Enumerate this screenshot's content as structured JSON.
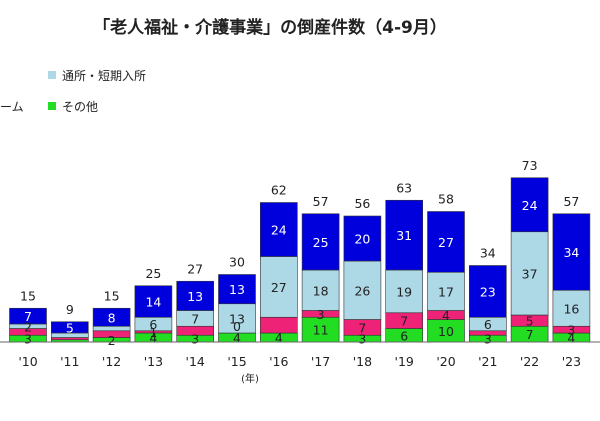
{
  "chart_data": {
    "type": "bar",
    "stacked": true,
    "title": "「老人福祉・介護事業」の倒産件数（4-9月）",
    "x_unit": "(年)",
    "categories": [
      "'10",
      "'11",
      "'12",
      "'13",
      "'14",
      "'15",
      "'16",
      "'17",
      "'18",
      "'19",
      "'20",
      "'21",
      "'22",
      "'23"
    ],
    "totals": [
      15,
      9,
      15,
      25,
      27,
      30,
      62,
      57,
      56,
      63,
      58,
      34,
      73,
      57
    ],
    "series": [
      {
        "key": "other",
        "name": "その他",
        "color": "#22dd22",
        "label_color": "#222222",
        "values": [
          3,
          1,
          2,
          4,
          3,
          4,
          4,
          11,
          3,
          6,
          10,
          3,
          7,
          4
        ]
      },
      {
        "key": "home",
        "name": "",
        "color": "#ee2277",
        "label_color": "#222222",
        "values": [
          3,
          1,
          3,
          1,
          4,
          0,
          7,
          3,
          7,
          7,
          4,
          2,
          5,
          3
        ]
      },
      {
        "key": "day",
        "name": "通所・短期入所",
        "color": "#add8e6",
        "label_color": "#222222",
        "values": [
          2,
          2,
          2,
          6,
          7,
          13,
          27,
          18,
          26,
          19,
          17,
          6,
          37,
          16
        ]
      },
      {
        "key": "visit",
        "name": "",
        "color": "#0000dd",
        "label_color": "#ffffff",
        "values": [
          7,
          5,
          8,
          14,
          13,
          13,
          24,
          25,
          20,
          31,
          27,
          23,
          24,
          34
        ]
      }
    ],
    "segment_labels": {
      "other": [
        "3",
        "",
        "2",
        "4",
        "3",
        "4",
        "4",
        "11",
        "3",
        "6",
        "10",
        "3",
        "7",
        "4"
      ],
      "home": [
        "",
        "",
        "",
        "1",
        "",
        "",
        "",
        "3",
        "7",
        "7",
        "4",
        "",
        "5",
        "3"
      ],
      "day": [
        "2",
        "",
        "",
        "6",
        "7",
        "13",
        "27",
        "18",
        "26",
        "19",
        "17",
        "6",
        "37",
        "16"
      ],
      "visit": [
        "7",
        "5",
        "8",
        "14",
        "13",
        "13",
        "24",
        "25",
        "20",
        "31",
        "27",
        "23",
        "24",
        "34"
      ]
    },
    "extra_labels": [
      {
        "index": 5,
        "series": "home",
        "text": "0"
      }
    ],
    "legend": [
      {
        "series": "day",
        "label": "通所・短期入所"
      },
      {
        "series": "home",
        "label": "ーム"
      },
      {
        "series": "other",
        "label": "その他"
      }
    ],
    "grid": false,
    "legend_position": "top-left"
  }
}
